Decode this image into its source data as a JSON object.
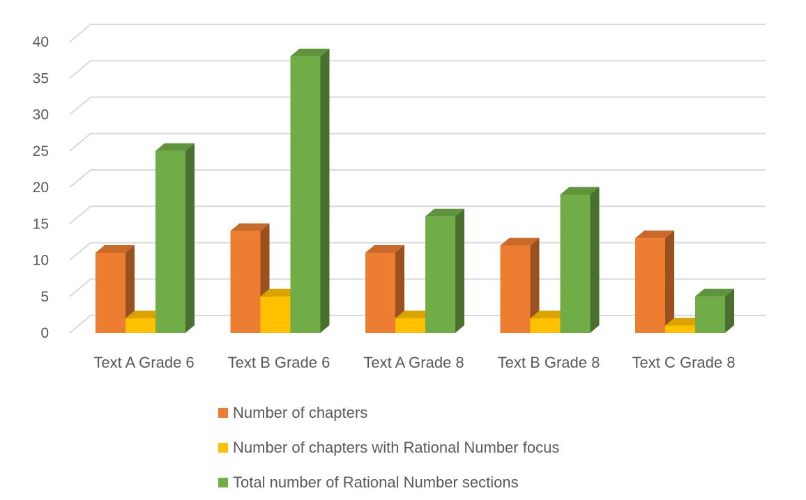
{
  "chart_data": {
    "type": "bar",
    "style": "3d-clustered-column",
    "categories": [
      "Text A Grade 6",
      "Text B Grade 6",
      "Text A Grade 8",
      "Text B Grade 8",
      "Text C Grade 8"
    ],
    "series": [
      {
        "name": "Number of chapters",
        "values": [
          11,
          14,
          11,
          12,
          13
        ],
        "color": "#ED7D31"
      },
      {
        "name": "Number of chapters with Rational Number focus",
        "values": [
          2,
          5,
          2,
          2,
          1
        ],
        "color": "#FFC000"
      },
      {
        "name": "Total number of Rational Number sections",
        "values": [
          25,
          38,
          16,
          19,
          5
        ],
        "color": "#70AD47"
      }
    ],
    "ylim": [
      0,
      40
    ],
    "yticks": [
      "0",
      "5",
      "10",
      "15",
      "20",
      "25",
      "30",
      "35",
      "40"
    ],
    "grid": true,
    "legend_position": "bottom"
  }
}
